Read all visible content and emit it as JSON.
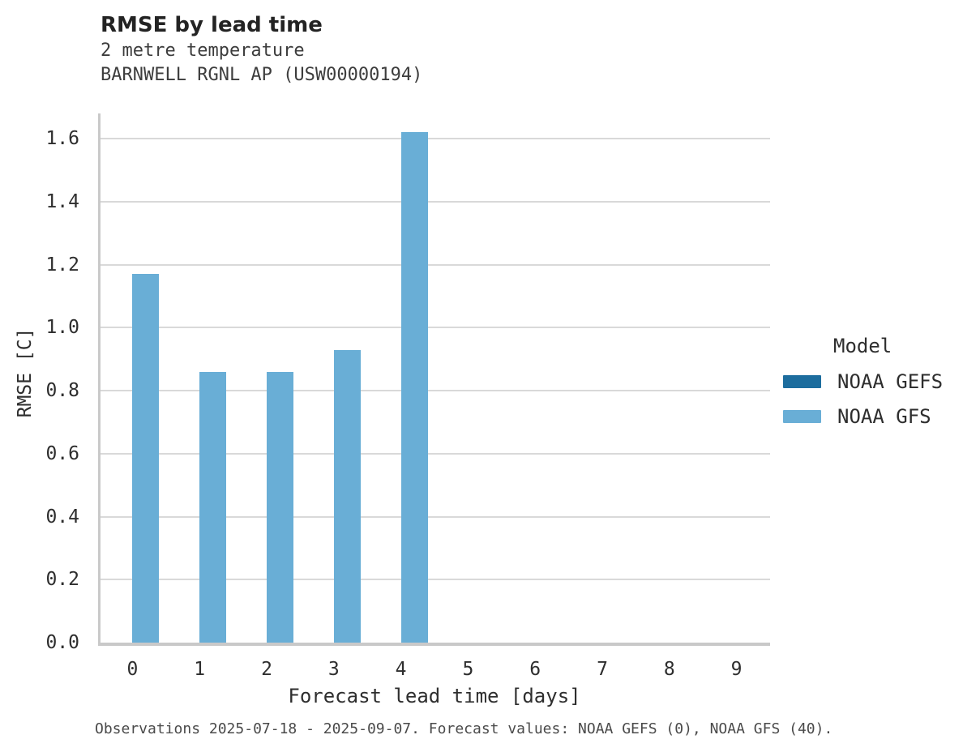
{
  "header": {
    "title": "RMSE by lead time",
    "subtitle_line1": "2 metre temperature",
    "subtitle_line2": "BARNWELL RGNL AP (USW00000194)"
  },
  "legend": {
    "title": "Model"
  },
  "footer": {
    "caption": "Observations 2025-07-18 - 2025-09-07. Forecast values: NOAA GEFS (0), NOAA GFS (40)."
  },
  "colors": {
    "noaa_gefs": "#1d6d9e",
    "noaa_gfs": "#69aed6",
    "gridline": "#d9d9d9",
    "axis": "#c9c9c9"
  },
  "chart_data": {
    "type": "bar",
    "title": "RMSE by lead time",
    "subtitle": [
      "2 metre temperature",
      "BARNWELL RGNL AP (USW00000194)"
    ],
    "categories": [
      "0",
      "1",
      "2",
      "3",
      "4",
      "5",
      "6",
      "7",
      "8",
      "9"
    ],
    "series": [
      {
        "name": "NOAA GEFS",
        "color": "#1d6d9e",
        "values": [
          null,
          null,
          null,
          null,
          null,
          null,
          null,
          null,
          null,
          null
        ]
      },
      {
        "name": "NOAA GFS",
        "color": "#69aed6",
        "values": [
          1.17,
          0.86,
          0.86,
          0.93,
          1.62,
          null,
          null,
          null,
          null,
          null
        ]
      }
    ],
    "xlabel": "Forecast lead time [days]",
    "ylabel": "RMSE [C]",
    "ylim": [
      0,
      1.68
    ],
    "y_ticks": [
      0.0,
      0.2,
      0.4,
      0.6,
      0.8,
      1.0,
      1.2,
      1.4,
      1.6
    ],
    "grid": "horizontal",
    "legend_position": "right",
    "legend_title": "Model"
  }
}
